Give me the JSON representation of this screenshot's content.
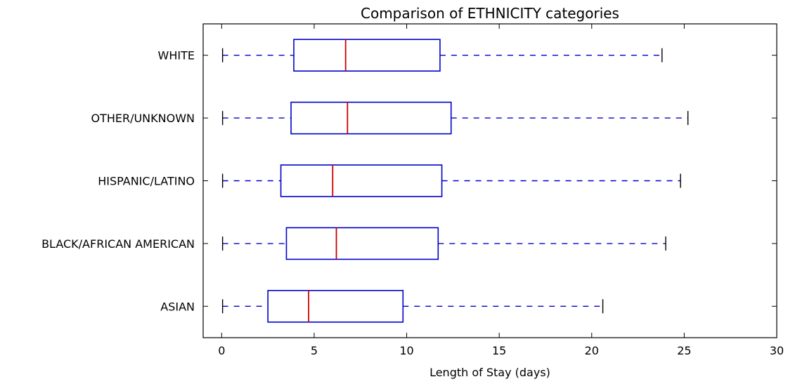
{
  "chart_data": {
    "type": "boxplot",
    "orientation": "horizontal",
    "title": "Comparison of ETHNICITY categories",
    "xlabel": "Length of Stay (days)",
    "ylabel": "",
    "xlim": [
      -1,
      30
    ],
    "xticks": [
      0,
      5,
      10,
      15,
      20,
      25,
      30
    ],
    "grid": false,
    "colors": {
      "box": "#0000cc",
      "median": "#cc0000",
      "whisker": "#0000cc",
      "cap": "#000000",
      "frame": "#000000"
    },
    "categories": [
      "WHITE",
      "OTHER/UNKNOWN",
      "HISPANIC/LATINO",
      "BLACK/AFRICAN AMERICAN",
      "ASIAN"
    ],
    "boxes": [
      {
        "label": "WHITE",
        "whislo": 0.05,
        "q1": 3.9,
        "med": 6.7,
        "q3": 11.8,
        "whishi": 23.8
      },
      {
        "label": "OTHER/UNKNOWN",
        "whislo": 0.05,
        "q1": 3.75,
        "med": 6.8,
        "q3": 12.4,
        "whishi": 25.2
      },
      {
        "label": "HISPANIC/LATINO",
        "whislo": 0.05,
        "q1": 3.2,
        "med": 6.0,
        "q3": 11.9,
        "whishi": 24.8
      },
      {
        "label": "BLACK/AFRICAN AMERICAN",
        "whislo": 0.05,
        "q1": 3.5,
        "med": 6.2,
        "q3": 11.7,
        "whishi": 24.0
      },
      {
        "label": "ASIAN",
        "whislo": 0.05,
        "q1": 2.5,
        "med": 4.7,
        "q3": 9.8,
        "whishi": 20.6
      }
    ]
  }
}
